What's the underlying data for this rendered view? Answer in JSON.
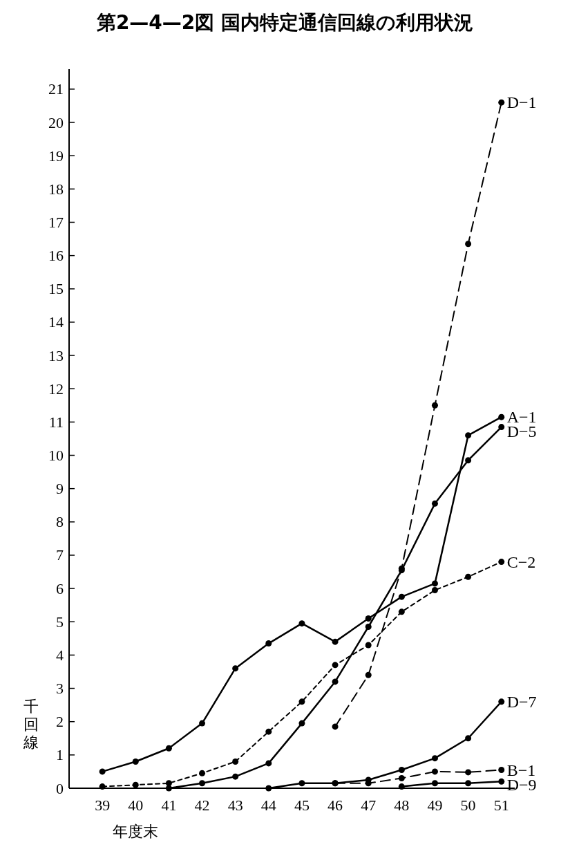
{
  "chart_data": {
    "type": "line",
    "title": "第2—4—2図 国内特定通信回線の利用状況",
    "xlabel": "年度末",
    "ylabel": "千回線",
    "xlim": [
      38,
      51.4
    ],
    "ylim": [
      0,
      21.6
    ],
    "xticks": [
      39,
      40,
      41,
      42,
      43,
      44,
      45,
      46,
      47,
      48,
      49,
      50,
      51
    ],
    "yticks": [
      0,
      1,
      2,
      3,
      4,
      5,
      6,
      7,
      8,
      9,
      10,
      11,
      12,
      13,
      14,
      15,
      16,
      17,
      18,
      19,
      20,
      21
    ],
    "grid": false,
    "marker": "circle",
    "series": [
      {
        "name": "D−1",
        "color": "#000000",
        "line_style": "dashed",
        "x": [
          46,
          47,
          48,
          49,
          50,
          51
        ],
        "values": [
          1.85,
          3.4,
          6.6,
          11.5,
          16.35,
          20.6
        ]
      },
      {
        "name": "A−1",
        "color": "#000000",
        "line_style": "solid",
        "x": [
          39,
          40,
          41,
          42,
          43,
          44,
          45,
          46,
          47,
          48,
          49,
          50,
          51
        ],
        "values": [
          0.5,
          0.8,
          1.2,
          1.95,
          3.6,
          4.35,
          4.95,
          4.4,
          5.1,
          5.75,
          6.15,
          10.6,
          11.15
        ]
      },
      {
        "name": "D−5",
        "color": "#000000",
        "line_style": "solid",
        "x": [
          41,
          42,
          43,
          44,
          45,
          46,
          47,
          48,
          49,
          50,
          51
        ],
        "values": [
          0,
          0.15,
          0.35,
          0.75,
          1.95,
          3.2,
          4.85,
          6.55,
          8.55,
          9.85,
          10.85
        ]
      },
      {
        "name": "C−2",
        "color": "#000000",
        "line_style": "dotted",
        "x": [
          39,
          40,
          41,
          42,
          43,
          44,
          45,
          46,
          47,
          48,
          49,
          50,
          51
        ],
        "values": [
          0.05,
          0.1,
          0.15,
          0.45,
          0.8,
          1.7,
          2.6,
          3.7,
          4.3,
          5.3,
          5.95,
          6.35,
          6.8
        ]
      },
      {
        "name": "D−7",
        "color": "#000000",
        "line_style": "solid",
        "x": [
          44,
          45,
          46,
          47,
          48,
          49,
          50,
          51
        ],
        "values": [
          0,
          0.15,
          0.15,
          0.25,
          0.55,
          0.9,
          1.5,
          2.6
        ]
      },
      {
        "name": "B−1",
        "color": "#000000",
        "line_style": "dashed",
        "x": [
          46,
          47,
          48,
          49,
          50,
          51
        ],
        "values": [
          0.15,
          0.15,
          0.3,
          0.5,
          0.48,
          0.55
        ]
      },
      {
        "name": "D−9",
        "color": "#000000",
        "line_style": "solid",
        "x": [
          48,
          49,
          50,
          51
        ],
        "values": [
          0.05,
          0.15,
          0.15,
          0.2
        ]
      }
    ]
  }
}
